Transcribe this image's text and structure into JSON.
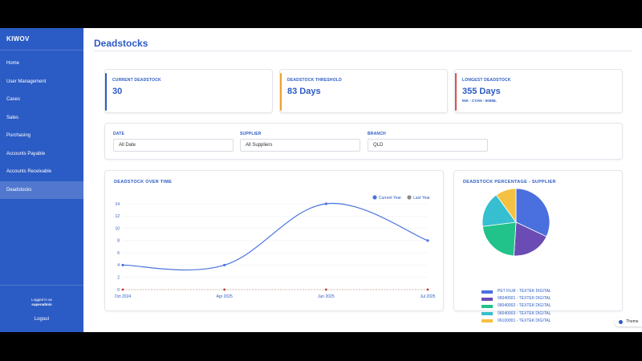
{
  "brand": "KIWOV",
  "nav": [
    {
      "label": "Home",
      "active": false
    },
    {
      "label": "User Management",
      "active": false
    },
    {
      "label": "Cases",
      "active": false
    },
    {
      "label": "Sales",
      "active": false
    },
    {
      "label": "Purchasing",
      "active": false
    },
    {
      "label": "Accounts Payable",
      "active": false
    },
    {
      "label": "Accounts Receivable",
      "active": false
    },
    {
      "label": "Deadstocks",
      "active": true
    }
  ],
  "user": {
    "logged_in_label": "Logged in as",
    "name": "superadmin",
    "logout": "Logout"
  },
  "page_title": "Deadstocks",
  "stats": [
    {
      "label": "CURRENT DEADSTOCK",
      "value": "30",
      "sub": "",
      "accent": "#2b5bc4"
    },
    {
      "label": "DEADSTOCK THRESHOLD",
      "value": "83 Days",
      "sub": "",
      "accent": "#f0a030"
    },
    {
      "label": "LONGEST DEADSTOCK",
      "value": "355 Days",
      "sub": "INK - CYAN - 500ML",
      "accent": "#e05050"
    }
  ],
  "filters": [
    {
      "label": "DATE",
      "value": "All Date"
    },
    {
      "label": "SUPPLIER",
      "value": "All Suppliers"
    },
    {
      "label": "BRANCH",
      "value": "QLD"
    }
  ],
  "colors": {
    "primary": "#2b5bc4",
    "line_current": "#4a74e0",
    "line_last": "#8a8a8a"
  },
  "chart_data": [
    {
      "type": "line",
      "title": "DEADSTOCK OVER TIME",
      "x": [
        "Oct 2024",
        "Apr 2025",
        "Jun 2025",
        "Jul 2025"
      ],
      "series": [
        {
          "name": "Current Year",
          "values": [
            4,
            4,
            14,
            8
          ],
          "color": "#4a74e0"
        },
        {
          "name": "Last Year",
          "values": [
            0,
            0,
            0,
            0
          ],
          "color": "#8a8a8a"
        }
      ],
      "yticks": [
        0,
        2,
        4,
        6,
        8,
        10,
        12,
        14
      ],
      "ylim": [
        0,
        14
      ],
      "grid": true,
      "legend": "top-right"
    },
    {
      "type": "pie",
      "title": "DEADSTOCK PERCENTAGE - SUPPLIER",
      "slices": [
        {
          "label": "PET FILM - TEXTEK DIGITAL",
          "value": 32,
          "color": "#4a6fde"
        },
        {
          "label": "06040001 - TEXTEK DIGITAL",
          "value": 19,
          "color": "#6b4cb5"
        },
        {
          "label": "06040002 - TEXTEK DIGITAL",
          "value": 22,
          "color": "#22c38a"
        },
        {
          "label": "06040003 - TEXTEK DIGITAL",
          "value": 17,
          "color": "#36bfd0"
        },
        {
          "label": "06100001 - TEXTEK DIGITAL",
          "value": 10,
          "color": "#f5c143"
        }
      ],
      "legend": "bottom"
    }
  ],
  "theme_label": "Theme"
}
